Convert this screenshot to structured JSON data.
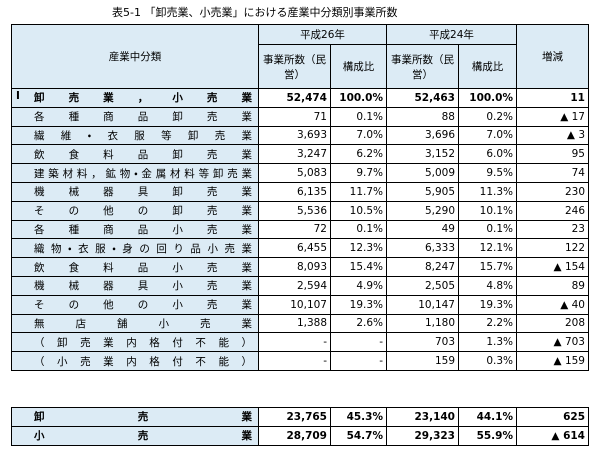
{
  "header": {
    "title": "表5-1 「卸売業、小売業」における産業中分類別事業所数",
    "col_label": "産業中分類",
    "year_1": "平成26年",
    "year_2": "平成24年",
    "change": "増減",
    "count": "事業所数（民営）",
    "ratio": "構成比",
    "count_2": "事業所数（民営）",
    "ratio_2": "構成比"
  },
  "table": {
    "rows": [
      {
        "prefix": "I",
        "label": "卸売業，小売業",
        "cells": [
          "52,474",
          "100.0%",
          "52,463",
          "100.0%",
          "11"
        ],
        "bold": true
      },
      {
        "label": "各種商品卸売業",
        "cells": [
          "71",
          "0.1%",
          "88",
          "0.2%",
          "▲ 17"
        ]
      },
      {
        "label": "繊維・衣服等卸売業",
        "cells": [
          "3,693",
          "7.0%",
          "3,696",
          "7.0%",
          "▲ 3"
        ]
      },
      {
        "label": "飲食料品卸売業",
        "cells": [
          "3,247",
          "6.2%",
          "3,152",
          "6.0%",
          "95"
        ]
      },
      {
        "label": "建築材料，鉱物・金属材料等卸売業",
        "cells": [
          "5,083",
          "9.7%",
          "5,009",
          "9.5%",
          "74"
        ]
      },
      {
        "label": "機械器具卸売業",
        "cells": [
          "6,135",
          "11.7%",
          "5,905",
          "11.3%",
          "230"
        ]
      },
      {
        "label": "その他の卸売業",
        "cells": [
          "5,536",
          "10.5%",
          "5,290",
          "10.1%",
          "246"
        ]
      },
      {
        "label": "各種商品小売業",
        "cells": [
          "72",
          "0.1%",
          "49",
          "0.1%",
          "23"
        ]
      },
      {
        "label": "織物・衣服・身の回り品小売業",
        "cells": [
          "6,455",
          "12.3%",
          "6,333",
          "12.1%",
          "122"
        ]
      },
      {
        "label": "飲食料品小売業",
        "cells": [
          "8,093",
          "15.4%",
          "8,247",
          "15.7%",
          "▲ 154"
        ]
      },
      {
        "label": "機械器具小売業",
        "cells": [
          "2,594",
          "4.9%",
          "2,505",
          "4.8%",
          "89"
        ]
      },
      {
        "label": "その他の小売業",
        "cells": [
          "10,107",
          "19.3%",
          "10,147",
          "19.3%",
          "▲ 40"
        ]
      },
      {
        "label": "無店舗小売業",
        "cells": [
          "1,388",
          "2.6%",
          "1,180",
          "2.2%",
          "208"
        ]
      },
      {
        "label": "（卸売業内格付不能）",
        "cells": [
          "-",
          "-",
          "703",
          "1.3%",
          "▲ 703"
        ]
      },
      {
        "label": "（小売業内格付不能）",
        "cells": [
          "-",
          "-",
          "159",
          "0.3%",
          "▲ 159"
        ]
      }
    ],
    "summary": [
      {
        "label": "卸売業",
        "cells": [
          "23,765",
          "45.3%",
          "23,140",
          "44.1%",
          "625"
        ]
      },
      {
        "label": "小売業",
        "cells": [
          "28,709",
          "54.7%",
          "29,323",
          "55.9%",
          "▲ 614"
        ]
      }
    ]
  }
}
